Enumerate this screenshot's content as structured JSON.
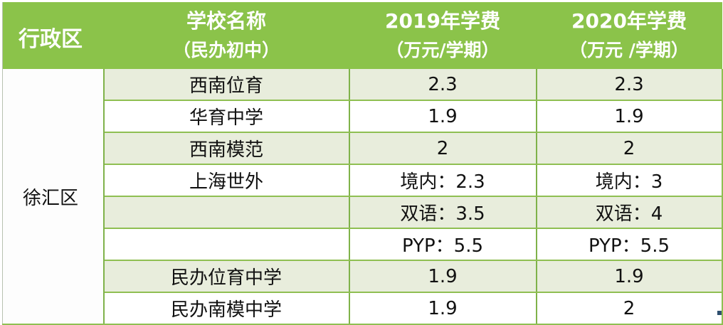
{
  "table": {
    "header": {
      "district": "行政区",
      "school_line1": "学校名称",
      "school_line2": "（民办初中）",
      "fee2019_line1": "2019年学费",
      "fee2019_line2": "（万元/学期）",
      "fee2020_line1": "2020年学费",
      "fee2020_line2": "（万元 /学期）"
    },
    "district": "徐汇区",
    "rows": [
      {
        "school": "西南位育",
        "fee2019": "2.3",
        "fee2020": "2.3"
      },
      {
        "school": "华育中学",
        "fee2019": "1.9",
        "fee2020": "1.9"
      },
      {
        "school": "西南模范",
        "fee2019": "2",
        "fee2020": "2"
      },
      {
        "school": "上海世外",
        "fee2019": "境内：2.3",
        "fee2020": "境内：3"
      },
      {
        "school": "",
        "fee2019": "双语：3.5",
        "fee2020": "双语：4"
      },
      {
        "school": "",
        "fee2019": "PYP：5.5",
        "fee2020": "PYP：5.5"
      },
      {
        "school": "民办位育中学",
        "fee2019": "1.9",
        "fee2020": "1.9"
      },
      {
        "school": "民办南模中学",
        "fee2019": "1.9",
        "fee2020": "2"
      }
    ]
  },
  "colors": {
    "header_bg": "#8bc34a",
    "header_text": "#ffffff",
    "band_bg": "#e8eddc",
    "border": "#7fb24a"
  }
}
